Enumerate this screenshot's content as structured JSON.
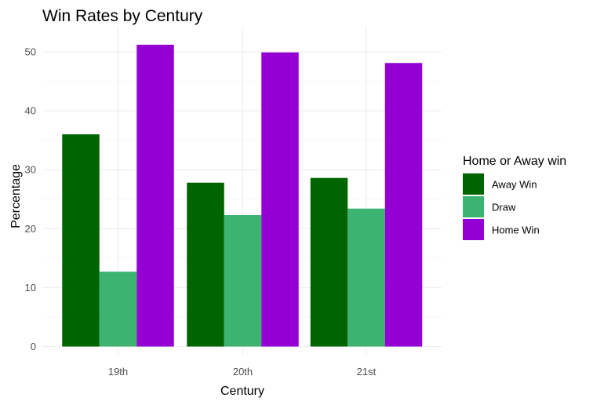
{
  "chart_data": {
    "type": "bar",
    "title": "Win Rates by Century",
    "xlabel": "Century",
    "ylabel": "Percentage",
    "categories": [
      "19th",
      "20th",
      "21st"
    ],
    "series": [
      {
        "name": "Away Win",
        "values": [
          36.0,
          27.8,
          28.6
        ],
        "color": "#006400"
      },
      {
        "name": "Draw",
        "values": [
          12.7,
          22.3,
          23.4
        ],
        "color": "#3CB371"
      },
      {
        "name": "Home Win",
        "values": [
          51.2,
          49.9,
          48.1
        ],
        "color": "#9400D3"
      }
    ],
    "ylim": [
      0,
      53
    ],
    "yticks": [
      0,
      10,
      20,
      30,
      40,
      50
    ],
    "grid": true,
    "legend": {
      "title": "Home or Away win",
      "position": "right"
    }
  }
}
